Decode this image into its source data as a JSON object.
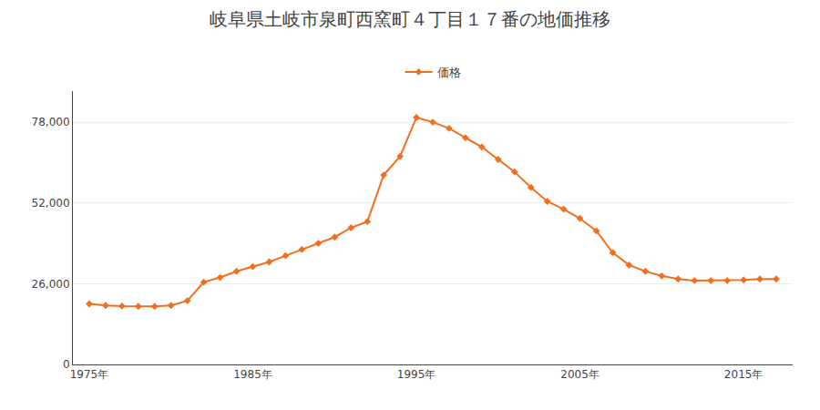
{
  "chart_data": {
    "type": "line",
    "title": "岐阜県土岐市泉町西窯町４丁目１７番の地価推移",
    "x": [
      1975,
      1976,
      1977,
      1978,
      1979,
      1980,
      1981,
      1982,
      1983,
      1984,
      1985,
      1986,
      1987,
      1988,
      1989,
      1990,
      1991,
      1992,
      1993,
      1994,
      1995,
      1996,
      1997,
      1998,
      1999,
      2000,
      2001,
      2002,
      2003,
      2004,
      2005,
      2006,
      2007,
      2008,
      2009,
      2010,
      2011,
      2012,
      2013,
      2014,
      2015,
      2016,
      2017
    ],
    "series": [
      {
        "name": "価格",
        "color": "#f07020",
        "marker": "diamond",
        "values": [
          19500,
          19000,
          18800,
          18700,
          18700,
          19000,
          20500,
          26500,
          28000,
          30000,
          31500,
          33000,
          35000,
          37000,
          39000,
          41000,
          44000,
          46000,
          61000,
          67000,
          79500,
          78000,
          76000,
          73000,
          70000,
          66000,
          62000,
          57000,
          52500,
          50000,
          47000,
          43000,
          36000,
          32000,
          30000,
          28500,
          27500,
          27000,
          27000,
          27000,
          27200,
          27500,
          27500
        ]
      }
    ],
    "xlim": [
      1974,
      2018
    ],
    "xticks": [
      {
        "value": 1975,
        "label": "1975年"
      },
      {
        "value": 1985,
        "label": "1985年"
      },
      {
        "value": 1995,
        "label": "1995年"
      },
      {
        "value": 2005,
        "label": "2005年"
      },
      {
        "value": 2015,
        "label": "2015年"
      }
    ],
    "ylim": [
      0,
      88000
    ],
    "yticks": [
      0,
      {
        "value": 26000,
        "label": "26,000"
      },
      {
        "value": 52000,
        "label": "52,000"
      },
      {
        "value": 78000,
        "label": "78,000"
      }
    ],
    "grid": "y",
    "legend": "top"
  }
}
